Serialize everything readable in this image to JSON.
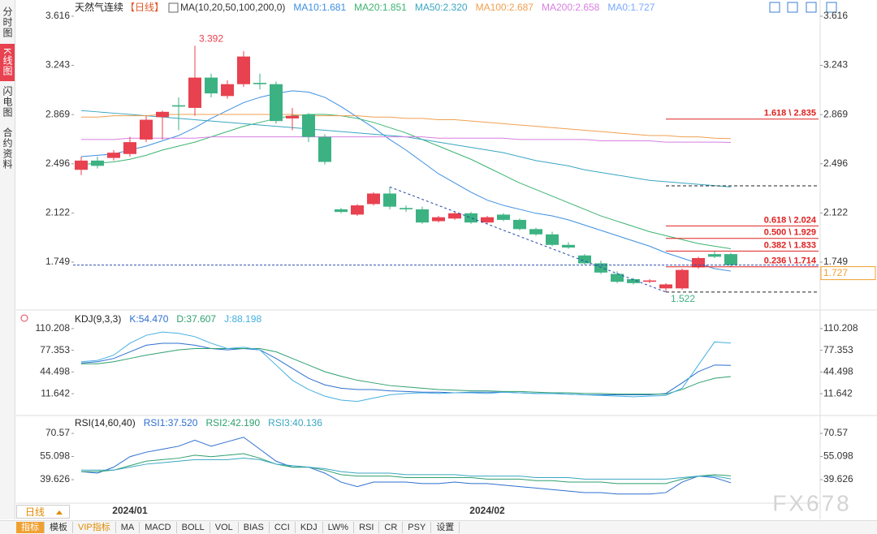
{
  "sidebar_tabs": [
    "分时图",
    "K线图",
    "闪电图",
    "合约资料"
  ],
  "period_button": "日线",
  "toolbar": [
    "指标",
    "模板",
    "VIP指标",
    "MA",
    "MACD",
    "BOLL",
    "VOL",
    "BIAS",
    "CCI",
    "KDJ",
    "LW%",
    "RSI",
    "CR",
    "PSY",
    "设置"
  ],
  "watermark": "FX678",
  "chart_data": [
    {
      "type": "candlestick",
      "title": "天然气连续",
      "period": "【日线】",
      "indicator": "MA(10,20,50,100,200,0)",
      "categories": [
        null,
        null,
        null,
        "2024/01",
        null,
        null,
        null,
        null,
        null,
        null,
        null,
        null,
        null,
        null,
        null,
        null,
        null,
        null,
        null,
        null,
        null,
        null,
        null,
        null,
        null,
        "2024/02",
        null,
        null,
        null,
        null,
        null,
        null,
        null,
        null,
        null,
        null,
        null,
        null,
        null,
        null,
        null
      ],
      "open": [
        2.45,
        2.52,
        2.54,
        2.57,
        2.68,
        2.85,
        2.94,
        2.92,
        3.15,
        3.01,
        3.1,
        3.11,
        3.1,
        2.84,
        2.87,
        2.7,
        2.15,
        2.11,
        2.19,
        2.27,
        2.16,
        2.15,
        2.06,
        2.08,
        2.12,
        2.05,
        2.11,
        2.07,
        2.0,
        1.96,
        1.88,
        1.8,
        1.74,
        1.66,
        1.62,
        1.6,
        1.55,
        1.55,
        1.71,
        1.81,
        1.81
      ],
      "high": [
        2.55,
        2.55,
        2.6,
        2.7,
        2.86,
        2.9,
        3.0,
        3.392,
        3.18,
        3.13,
        3.35,
        3.18,
        3.12,
        2.92,
        2.88,
        2.72,
        2.16,
        2.19,
        2.28,
        2.32,
        2.18,
        2.17,
        2.1,
        2.13,
        2.13,
        2.1,
        2.12,
        2.08,
        2.01,
        1.98,
        1.9,
        1.81,
        1.76,
        1.68,
        1.63,
        1.62,
        1.59,
        1.7,
        1.79,
        1.83,
        1.82
      ],
      "low": [
        2.41,
        2.46,
        2.52,
        2.55,
        2.66,
        2.68,
        2.75,
        2.86,
        3.0,
        2.99,
        3.08,
        3.06,
        2.8,
        2.75,
        2.66,
        2.49,
        2.12,
        2.1,
        2.18,
        2.15,
        2.13,
        2.04,
        2.05,
        2.07,
        2.04,
        2.04,
        2.06,
        1.99,
        1.95,
        1.87,
        1.85,
        1.73,
        1.66,
        1.59,
        1.58,
        1.59,
        1.522,
        1.54,
        1.7,
        1.78,
        1.71
      ],
      "close": [
        2.52,
        2.48,
        2.58,
        2.66,
        2.83,
        2.89,
        2.93,
        3.15,
        3.03,
        3.1,
        3.31,
        3.1,
        2.82,
        2.86,
        2.7,
        2.51,
        2.13,
        2.18,
        2.27,
        2.17,
        2.15,
        2.05,
        2.09,
        2.12,
        2.05,
        2.09,
        2.07,
        2.0,
        1.96,
        1.88,
        1.86,
        1.74,
        1.67,
        1.6,
        1.59,
        1.61,
        1.58,
        1.69,
        1.78,
        1.79,
        1.727
      ],
      "up_color": "#e8414f",
      "down_color": "#3cb283",
      "series": [
        {
          "name": "MA10:1.681",
          "color": "#3d8fe0",
          "values": [
            2.55,
            2.56,
            2.57,
            2.6,
            2.63,
            2.67,
            2.71,
            2.77,
            2.84,
            2.9,
            2.96,
            3.0,
            3.03,
            3.05,
            3.04,
            3.0,
            2.93,
            2.85,
            2.77,
            2.68,
            2.6,
            2.51,
            2.42,
            2.35,
            2.28,
            2.22,
            2.18,
            2.15,
            2.12,
            2.1,
            2.07,
            2.03,
            1.99,
            1.95,
            1.91,
            1.87,
            1.82,
            1.78,
            1.74,
            1.7,
            1.681
          ]
        },
        {
          "name": "MA20:1.851",
          "color": "#3cb371",
          "values": [
            2.49,
            2.5,
            2.51,
            2.53,
            2.56,
            2.6,
            2.63,
            2.66,
            2.7,
            2.74,
            2.78,
            2.81,
            2.84,
            2.86,
            2.87,
            2.87,
            2.86,
            2.84,
            2.81,
            2.77,
            2.73,
            2.68,
            2.63,
            2.58,
            2.53,
            2.47,
            2.41,
            2.35,
            2.3,
            2.25,
            2.2,
            2.15,
            2.1,
            2.06,
            2.02,
            1.98,
            1.95,
            1.92,
            1.89,
            1.87,
            1.851
          ]
        },
        {
          "name": "MA50:2.320",
          "color": "#3aa6c2",
          "values": [
            2.9,
            2.89,
            2.88,
            2.87,
            2.86,
            2.85,
            2.84,
            2.83,
            2.82,
            2.81,
            2.8,
            2.79,
            2.78,
            2.77,
            2.76,
            2.75,
            2.74,
            2.73,
            2.72,
            2.71,
            2.7,
            2.68,
            2.66,
            2.64,
            2.62,
            2.6,
            2.58,
            2.55,
            2.52,
            2.5,
            2.48,
            2.45,
            2.43,
            2.41,
            2.39,
            2.37,
            2.36,
            2.35,
            2.34,
            2.33,
            2.32
          ]
        },
        {
          "name": "MA100:2.687",
          "color": "#f0a050",
          "values": [
            2.85,
            2.85,
            2.86,
            2.86,
            2.86,
            2.87,
            2.87,
            2.87,
            2.87,
            2.87,
            2.87,
            2.87,
            2.87,
            2.87,
            2.86,
            2.86,
            2.86,
            2.86,
            2.85,
            2.85,
            2.84,
            2.84,
            2.83,
            2.83,
            2.82,
            2.81,
            2.8,
            2.79,
            2.78,
            2.77,
            2.76,
            2.75,
            2.74,
            2.73,
            2.72,
            2.71,
            2.71,
            2.7,
            2.7,
            2.69,
            2.687
          ]
        },
        {
          "name": "MA200:2.658",
          "color": "#d77fe0",
          "values": [
            2.68,
            2.68,
            2.68,
            2.69,
            2.69,
            2.69,
            2.69,
            2.69,
            2.7,
            2.7,
            2.7,
            2.7,
            2.7,
            2.7,
            2.7,
            2.7,
            2.7,
            2.7,
            2.7,
            2.7,
            2.7,
            2.7,
            2.69,
            2.69,
            2.69,
            2.69,
            2.69,
            2.68,
            2.68,
            2.68,
            2.68,
            2.68,
            2.67,
            2.67,
            2.67,
            2.67,
            2.66,
            2.66,
            2.66,
            2.66,
            2.658
          ]
        }
      ],
      "last_price": {
        "label": "MA0:1.727",
        "value": 1.727,
        "color": "#7aa8ff"
      },
      "fib_levels": [
        {
          "label": "1.618 \\ 2.835",
          "value": 2.835
        },
        {
          "label": "0.618 \\ 2.024",
          "value": 2.024
        },
        {
          "label": "0.500 \\ 1.929",
          "value": 1.929
        },
        {
          "label": "0.382 \\ 1.833",
          "value": 1.833
        },
        {
          "label": "0.236 \\ 1.714",
          "value": 1.714
        }
      ],
      "fib_bounds": [
        2.328,
        1.522
      ],
      "ylim": [
        1.398,
        3.739
      ],
      "yticks": [
        3.616,
        3.243,
        2.869,
        2.496,
        2.122,
        1.749
      ]
    },
    {
      "type": "line",
      "title": "KDJ(9,3,3)",
      "series": [
        {
          "name": "K:54.470",
          "color": "#2d6fd0",
          "values": [
            58,
            60,
            65,
            75,
            85,
            88,
            88,
            85,
            80,
            78,
            80,
            78,
            65,
            50,
            35,
            25,
            20,
            18,
            18,
            16,
            15,
            14,
            14,
            13,
            14,
            14,
            14,
            13,
            12,
            12,
            11,
            10,
            10,
            10,
            10,
            10,
            12,
            28,
            45,
            55,
            54.47
          ]
        },
        {
          "name": "D:37.607",
          "color": "#2e9f6e",
          "values": [
            57,
            57,
            60,
            65,
            70,
            74,
            78,
            80,
            80,
            80,
            80,
            80,
            75,
            65,
            55,
            45,
            38,
            32,
            28,
            24,
            22,
            20,
            18,
            17,
            16,
            16,
            15,
            15,
            14,
            13,
            13,
            12,
            12,
            11,
            11,
            11,
            11,
            18,
            28,
            35,
            37.607
          ]
        },
        {
          "name": "J:88.198",
          "color": "#45b0e0",
          "values": [
            60,
            62,
            70,
            88,
            100,
            105,
            103,
            98,
            88,
            80,
            82,
            78,
            55,
            32,
            18,
            8,
            2,
            0,
            5,
            10,
            12,
            13,
            12,
            13,
            13,
            12,
            14,
            13,
            12,
            12,
            11,
            10,
            9,
            8,
            7,
            8,
            9,
            20,
            55,
            90,
            88.198
          ]
        }
      ],
      "ylim": [
        -18.9,
        134.6
      ],
      "yticks": [
        110.208,
        77.353,
        44.498,
        11.642
      ]
    },
    {
      "type": "line",
      "title": "RSI(14,60,40)",
      "series": [
        {
          "name": "RSI1:37.520",
          "color": "#2d6fd0",
          "values": [
            45,
            44,
            48,
            55,
            58,
            60,
            62,
            66,
            62,
            65,
            68,
            60,
            52,
            48,
            48,
            44,
            38,
            35,
            38,
            38,
            38,
            37,
            37,
            38,
            37,
            37,
            36,
            35,
            34,
            33,
            32,
            31,
            31,
            30,
            30,
            30,
            31,
            38,
            42,
            41,
            37.52
          ]
        },
        {
          "name": "RSI2:42.190",
          "color": "#2e9f6e",
          "values": [
            45,
            45,
            46,
            49,
            52,
            53,
            54,
            56,
            55,
            56,
            57,
            54,
            50,
            48,
            48,
            46,
            43,
            42,
            42,
            42,
            41,
            41,
            41,
            41,
            41,
            40,
            40,
            40,
            39,
            39,
            38,
            38,
            38,
            37,
            37,
            37,
            37,
            40,
            42,
            43,
            42.19
          ]
        },
        {
          "name": "RSI3:40.136",
          "color": "#3aa6c2",
          "values": [
            46,
            46,
            46,
            48,
            50,
            51,
            52,
            53,
            53,
            53,
            54,
            53,
            50,
            49,
            48,
            47,
            45,
            44,
            44,
            44,
            43,
            43,
            43,
            43,
            42,
            42,
            42,
            42,
            41,
            41,
            41,
            40,
            40,
            40,
            40,
            40,
            40,
            41,
            42,
            42,
            40.136
          ]
        }
      ],
      "ylim": [
        21.2,
        80.9
      ],
      "yticks": [
        70.57,
        55.098,
        39.626
      ]
    }
  ]
}
